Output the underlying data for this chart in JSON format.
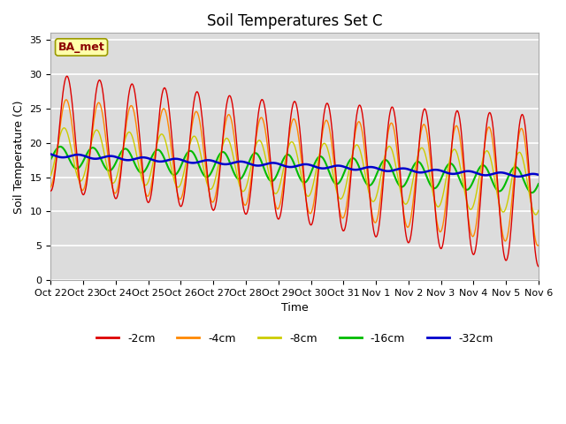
{
  "title": "Soil Temperatures Set C",
  "xlabel": "Time",
  "ylabel": "Soil Temperature (C)",
  "ylim": [
    0,
    36
  ],
  "background_color": "#dcdcdc",
  "grid_color": "white",
  "series_colors": {
    "-2cm": "#dd0000",
    "-4cm": "#ff8800",
    "-8cm": "#cccc00",
    "-16cm": "#00bb00",
    "-32cm": "#0000cc"
  },
  "legend_label": "BA_met",
  "xtick_labels": [
    "Oct 22",
    "Oct 23",
    "Oct 24",
    "Oct 25",
    "Oct 26",
    "Oct 27",
    "Oct 28",
    "Oct 29",
    "Oct 30",
    "Oct 31",
    "Nov 1",
    "Nov 2",
    "Nov 3",
    "Nov 4",
    "Nov 5",
    "Nov 6"
  ],
  "title_fontsize": 12,
  "axis_fontsize": 9,
  "tick_fontsize": 8,
  "linewidth_shallow": 1.0,
  "linewidth_deep": 1.5
}
